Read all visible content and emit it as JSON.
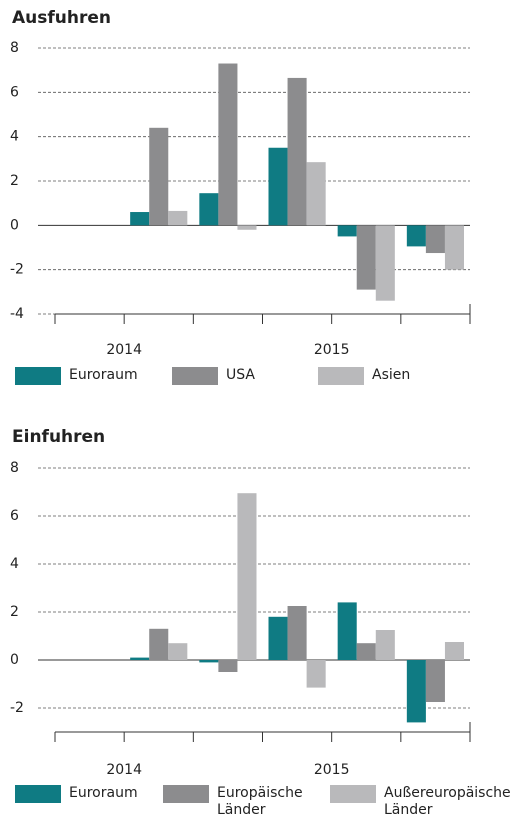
{
  "chart_data": [
    {
      "type": "bar",
      "title": "Ausfuhren",
      "categories": [
        null,
        null,
        null,
        null,
        null,
        null
      ],
      "year_labels": [
        "2014",
        "2015"
      ],
      "series": [
        {
          "name": "Euroraum",
          "color": "#0f7b83",
          "values": [
            0,
            0.6,
            1.45,
            3.5,
            -0.5,
            -0.95
          ]
        },
        {
          "name": "USA",
          "color": "#8c8c8e",
          "values": [
            0,
            4.4,
            7.3,
            6.65,
            -2.9,
            -1.25
          ]
        },
        {
          "name": "Asien",
          "color": "#b9b9bb",
          "values": [
            0,
            0.65,
            -0.2,
            2.85,
            -3.4,
            -2.0
          ]
        }
      ],
      "ylim": [
        -4,
        8
      ],
      "yticks": [
        -4,
        -2,
        0,
        2,
        4,
        6,
        8
      ],
      "grid": true
    },
    {
      "type": "bar",
      "title": "Einfuhren",
      "categories": [
        null,
        null,
        null,
        null,
        null,
        null
      ],
      "year_labels": [
        "2014",
        "2015"
      ],
      "series": [
        {
          "name": "Euroraum",
          "color": "#0f7b83",
          "values": [
            0,
            0.1,
            -0.1,
            1.8,
            2.4,
            -2.6
          ]
        },
        {
          "name": "Europäische Länder",
          "color": "#8c8c8e",
          "values": [
            0,
            1.3,
            -0.5,
            2.25,
            0.7,
            -1.75
          ]
        },
        {
          "name": "Außereuropäische Länder",
          "color": "#b9b9bb",
          "values": [
            0,
            0.7,
            6.95,
            -1.15,
            1.25,
            0.75
          ]
        }
      ],
      "ylim": [
        -3,
        8
      ],
      "yticks": [
        -2,
        0,
        2,
        4,
        6,
        8
      ],
      "grid": true
    }
  ]
}
